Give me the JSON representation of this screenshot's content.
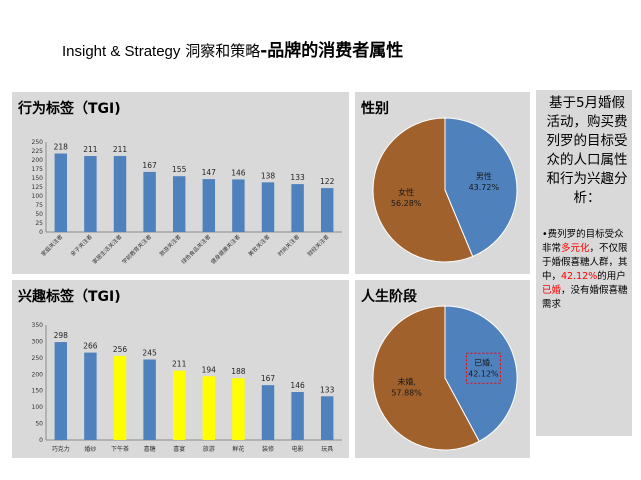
{
  "page_title": {
    "part1": "Insight & Strategy",
    "part2": "洞察和策略",
    "part3": "-品牌的消费者属性"
  },
  "side_note": {
    "lead": "基于5月婚假活动，购买费列罗的目标受众的人口属性和行为兴趣分析：",
    "bullet_parts": [
      "•费列罗的目标受众非常",
      "多元化",
      "，不仅限于婚假喜糖人群，其中，",
      "42.12%",
      "的用户",
      "已婚",
      "，没有婚假喜糖需求"
    ]
  },
  "colors": {
    "blue": "#4f81bd",
    "yellow": "#ffff00",
    "brown": "#a0612c",
    "panel": "#d9d9d9",
    "highlight": "#ff0000"
  },
  "chart_data": [
    {
      "type": "bar",
      "title": "行为标签（TGI)",
      "categories": [
        "家庭关注者",
        "亲子关注者",
        "家居生活关注者",
        "学前教育关注者",
        "旅游关注者",
        "绿色食品关注者",
        "健身健康关注者",
        "美妆关注者",
        "时尚关注者",
        "财经关注者"
      ],
      "values": [
        218,
        211,
        211,
        167,
        155,
        147,
        146,
        138,
        133,
        122
      ],
      "ylim": [
        0,
        250
      ],
      "yticks": [
        0,
        25,
        50,
        75,
        100,
        125,
        150,
        175,
        200,
        225,
        250
      ],
      "bar_colors": [
        "#4f81bd",
        "#4f81bd",
        "#4f81bd",
        "#4f81bd",
        "#4f81bd",
        "#4f81bd",
        "#4f81bd",
        "#4f81bd",
        "#4f81bd",
        "#4f81bd"
      ],
      "grid": false
    },
    {
      "type": "bar",
      "title": "兴趣标签（TGI)",
      "categories": [
        "巧克力",
        "婚纱",
        "下午茶",
        "喜糖",
        "喜宴",
        "旅游",
        "鲜花",
        "装修",
        "电影",
        "玩具"
      ],
      "values": [
        298,
        266,
        256,
        245,
        211,
        194,
        188,
        167,
        146,
        133
      ],
      "ylim": [
        0,
        350
      ],
      "yticks": [
        0,
        50,
        100,
        150,
        200,
        250,
        300,
        350
      ],
      "bar_colors": [
        "#4f81bd",
        "#4f81bd",
        "#ffff00",
        "#4f81bd",
        "#ffff00",
        "#ffff00",
        "#ffff00",
        "#4f81bd",
        "#4f81bd",
        "#4f81bd"
      ],
      "grid": false
    },
    {
      "type": "pie",
      "title": "性别",
      "slices": [
        {
          "label": "男性",
          "value": 43.72,
          "value_label": "43.72%",
          "color": "#4f81bd"
        },
        {
          "label": "女性",
          "value": 56.28,
          "value_label": "56.28%",
          "color": "#a0612c"
        }
      ]
    },
    {
      "type": "pie",
      "title": "人生阶段",
      "slices": [
        {
          "label": "已婚,",
          "value": 42.12,
          "value_label": "42.12%",
          "color": "#4f81bd",
          "highlight": true
        },
        {
          "label": "未婚,",
          "value": 57.88,
          "value_label": "57.88%",
          "color": "#a0612c"
        }
      ]
    }
  ]
}
